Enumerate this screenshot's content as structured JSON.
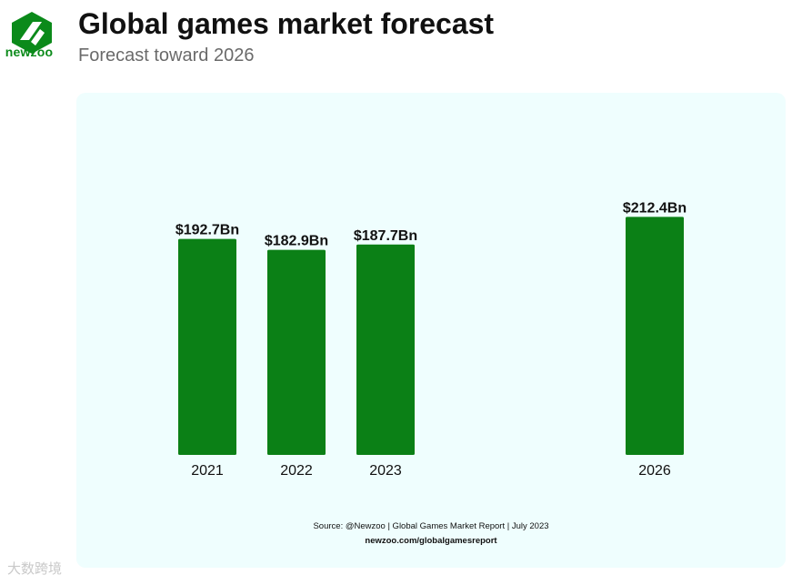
{
  "brand": {
    "name": "newzoo",
    "color": "#0b8a1a"
  },
  "header": {
    "title": "Global games market forecast",
    "subtitle": "Forecast toward 2026"
  },
  "chart_data": {
    "type": "bar",
    "title": "Global games market forecast",
    "subtitle": "Forecast toward 2026",
    "categories": [
      "2021",
      "2022",
      "2023",
      "2026"
    ],
    "values": [
      192.7,
      182.9,
      187.7,
      212.4
    ],
    "value_labels": [
      "$192.7Bn",
      "$182.9Bn",
      "$187.7Bn",
      "$212.4Bn"
    ],
    "units": "USD billions",
    "xlabel": "",
    "ylabel": "",
    "ylim": [
      0,
      250
    ],
    "grid": false,
    "bar_color": "#0b8016"
  },
  "footer": {
    "source": "Source: @Newzoo | Global Games Market Report | July 2023",
    "url": "newzoo.com/globalgamesreport"
  },
  "watermark": {
    "text": "大数跨境"
  }
}
